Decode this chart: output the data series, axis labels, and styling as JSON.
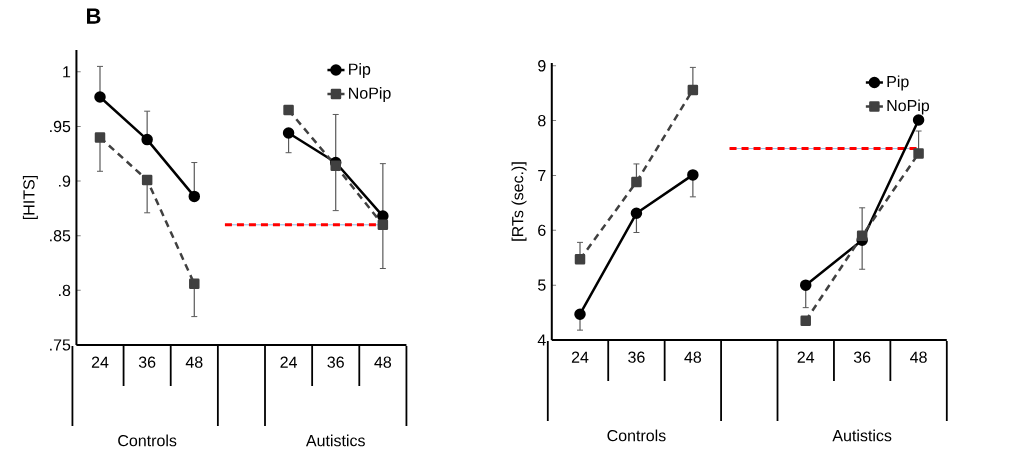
{
  "chart_data": [
    {
      "type": "line",
      "title": "B",
      "ylabel": "[HITS]",
      "categories": [
        "24",
        "36",
        "48",
        null,
        "24",
        "36",
        "48"
      ],
      "series": [
        {
          "name": "Pip",
          "color": "#000000",
          "marker": "circle",
          "line_style": "solid",
          "values": [
            0.977,
            0.938,
            0.886,
            null,
            0.944,
            0.917,
            0.868
          ],
          "errors": [
            [
              0.977,
              1.005
            ],
            [
              0.938,
              0.964
            ],
            [
              0.886,
              0.917
            ],
            null,
            [
              0.926,
              0.944
            ],
            null,
            [
              0.82,
              0.916
            ]
          ]
        },
        {
          "name": "NoPip",
          "color": "#404040",
          "marker": "square",
          "line_style": "dashed",
          "values": [
            0.94,
            0.901,
            0.806,
            null,
            0.965,
            0.914,
            0.86
          ],
          "errors": [
            [
              0.909,
              0.94
            ],
            [
              0.871,
              0.901
            ],
            [
              0.776,
              0.806
            ],
            null,
            null,
            [
              0.873,
              0.961
            ],
            null
          ]
        }
      ],
      "ylim": [
        0.75,
        1.02
      ],
      "yticks": [
        {
          "value": 0.75,
          "label": ".75"
        },
        {
          "value": 0.8,
          "label": ".8"
        },
        {
          "value": 0.85,
          "label": ".85"
        },
        {
          "value": 0.9,
          "label": ".9"
        },
        {
          "value": 0.95,
          "label": ".95"
        },
        1
      ],
      "ref_lines": [
        {
          "axis": "y",
          "value": 0.86,
          "color": "#6fa8dc",
          "line_style": "solid"
        },
        {
          "axis": "y",
          "value": 0.86,
          "color": "#ff0000",
          "line_style": "dashed"
        }
      ],
      "legend": "top right",
      "annotations": [
        "Controls",
        "Autistics"
      ]
    },
    {
      "type": "line",
      "ylabel": "[RTs (sec.)]",
      "categories": [
        "24",
        "36",
        "48",
        null,
        "24",
        "36",
        "48"
      ],
      "series": [
        {
          "name": "Pip",
          "color": "#000000",
          "marker": "circle",
          "line_style": "solid",
          "values": [
            4.47,
            6.31,
            7.01,
            null,
            5.0,
            5.82,
            8.01
          ],
          "errors": [
            [
              4.18,
              4.47
            ],
            [
              5.96,
              6.31
            ],
            [
              6.61,
              7.01
            ],
            null,
            [
              4.59,
              5.0
            ],
            [
              5.29,
              6.41
            ],
            null
          ]
        },
        {
          "name": "NoPip",
          "color": "#404040",
          "marker": "square",
          "line_style": "dashed",
          "values": [
            5.47,
            6.88,
            8.56,
            null,
            4.35,
            5.9,
            7.4
          ],
          "errors": [
            [
              5.47,
              5.78
            ],
            [
              6.88,
              7.21
            ],
            [
              8.56,
              8.97
            ],
            null,
            null,
            null,
            [
              7.4,
              7.81
            ]
          ]
        }
      ],
      "ylim": [
        4,
        9.05
      ],
      "yticks": [
        4,
        5,
        6,
        7,
        8,
        9
      ],
      "ref_lines": [
        {
          "axis": "y",
          "value": 7.49,
          "color": "#6fa8dc",
          "line_style": "solid"
        },
        {
          "axis": "y",
          "value": 7.49,
          "color": "#ff0000",
          "line_style": "dashed"
        }
      ],
      "legend": "top right",
      "annotations": [
        "Controls",
        "Autistics"
      ]
    }
  ]
}
